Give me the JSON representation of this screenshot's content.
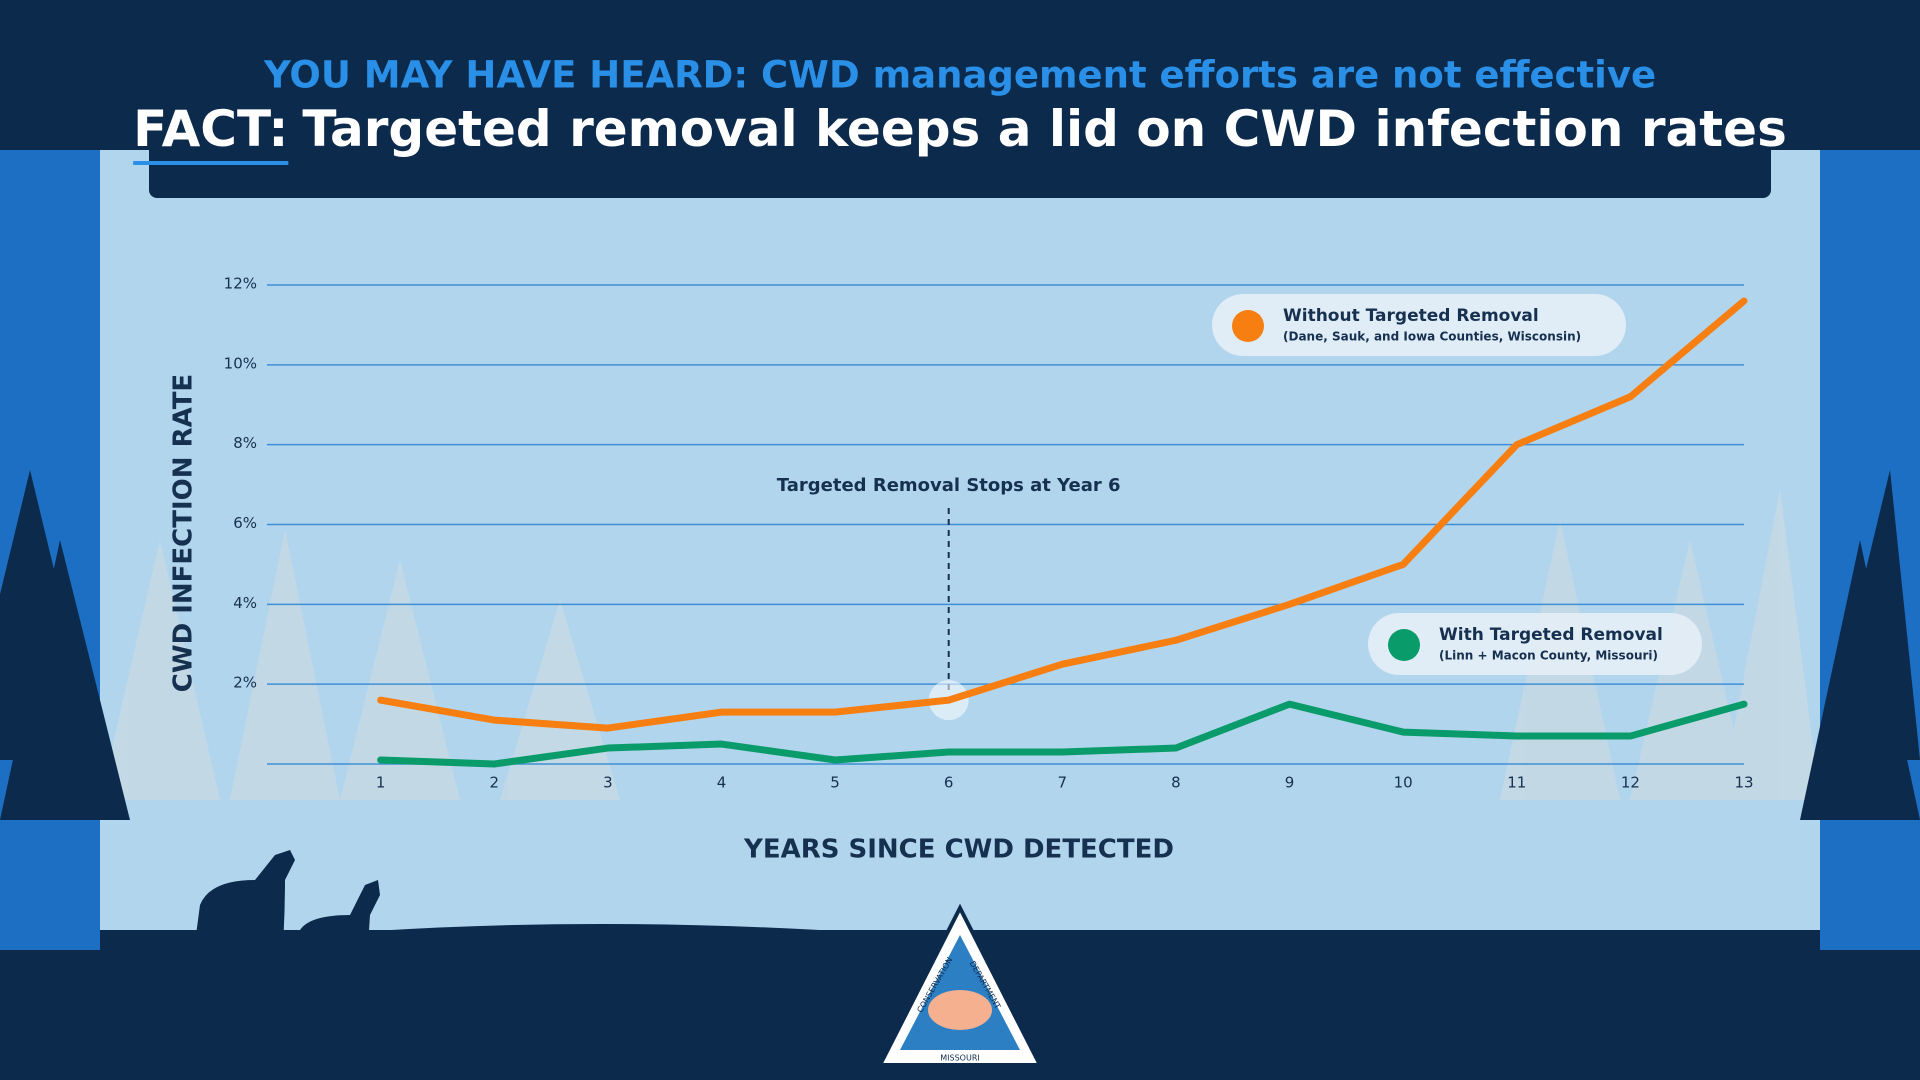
{
  "chart_data": {
    "type": "line",
    "kicker": "YOU MAY HAVE HEARD: CWD management efforts are not effective",
    "title_lead": "FACT:",
    "title": "Targeted removal keeps a lid on CWD infection rates",
    "x_label": "YEARS SINCE CWD DETECTED",
    "y_label": "CWD INFECTION RATE",
    "x": [
      1,
      2,
      3,
      4,
      5,
      6,
      7,
      8,
      9,
      10,
      11,
      12,
      13
    ],
    "xlim": [
      0,
      13
    ],
    "xticks": [
      1,
      2,
      3,
      4,
      5,
      6,
      7,
      8,
      9,
      10,
      11,
      12,
      13
    ],
    "ylim": [
      0,
      12
    ],
    "yticks": [
      {
        "value": 2,
        "label": "2%"
      },
      {
        "value": 4,
        "label": "4%"
      },
      {
        "value": 6,
        "label": "6%"
      },
      {
        "value": 8,
        "label": "8%"
      },
      {
        "value": 10,
        "label": "10%"
      },
      {
        "value": 12,
        "label": "12%"
      }
    ],
    "grid": true,
    "series": [
      {
        "name": "Without Targeted Removal",
        "description": "(Dane, Sauk, and Iowa Counties, Wisconsin)",
        "color": "#f77f11",
        "values": [
          1.6,
          1.1,
          0.9,
          1.3,
          1.3,
          1.6,
          2.5,
          3.1,
          4.0,
          5.0,
          8.0,
          9.2,
          11.6
        ]
      },
      {
        "name": "With Targeted Removal",
        "description": "(Linn + Macon County, Missouri)",
        "color": "#0a9b6a",
        "values": [
          0.1,
          0.0,
          0.4,
          0.5,
          0.1,
          0.3,
          0.3,
          0.4,
          1.5,
          0.8,
          0.7,
          0.7,
          1.5
        ]
      }
    ],
    "annotation": {
      "text": "Targeted Removal Stops at Year 6",
      "x": 6
    },
    "logo": {
      "top": "CONSERVATION",
      "right": "DEPARTMENT",
      "bottom": "MISSOURI"
    }
  }
}
